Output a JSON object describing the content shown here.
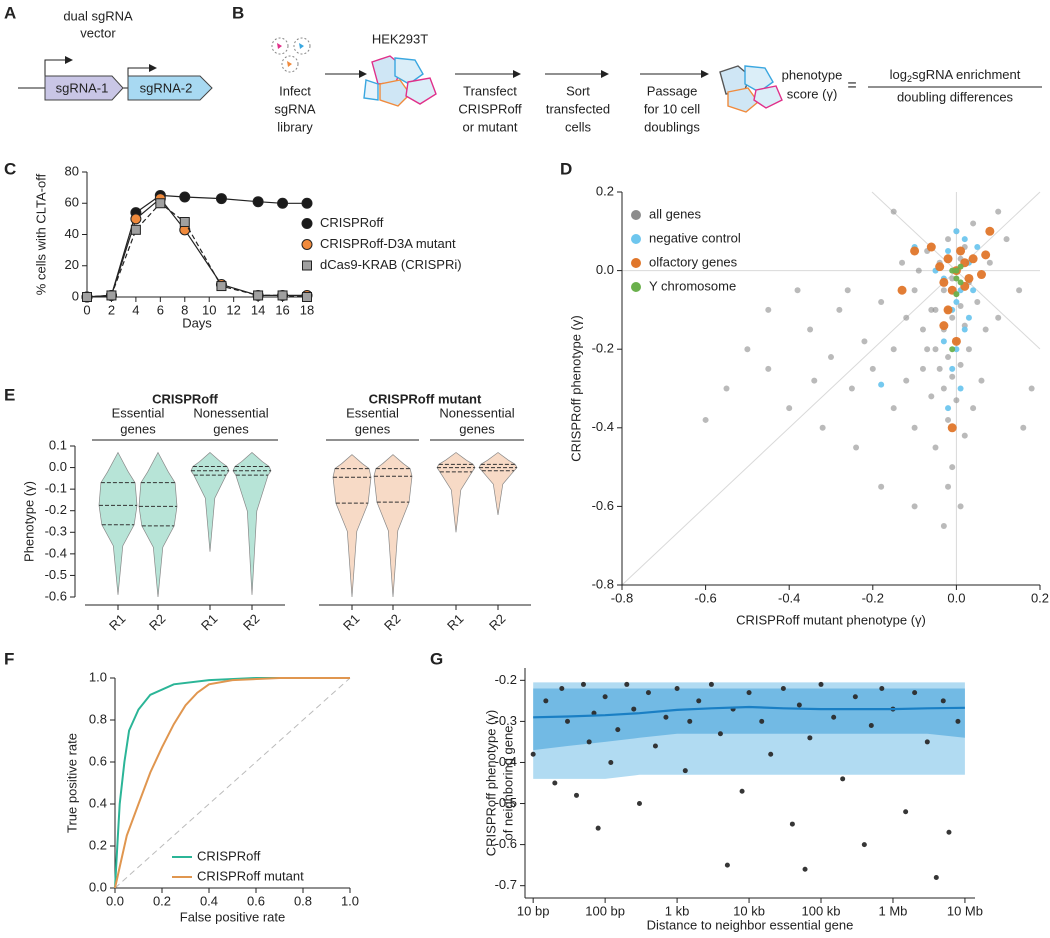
{
  "panel_labels": {
    "a": "A",
    "b": "B",
    "c": "C",
    "d": "D",
    "e": "E",
    "f": "F",
    "g": "G"
  },
  "diagram_a": {
    "title": [
      "dual sgRNA",
      "vector"
    ],
    "elements": [
      "sgRNA-1",
      "sgRNA-2"
    ]
  },
  "diagram_b": {
    "cell_line": "HEK293T",
    "steps": [
      [
        "Infect",
        "sgRNA",
        "library"
      ],
      [
        "Transfect",
        "CRISPRoff",
        "or mutant"
      ],
      [
        "Sort",
        "transfected",
        "cells"
      ],
      [
        "Passage",
        "for 10 cell",
        "doublings"
      ]
    ],
    "score_label": [
      "phenotype",
      "score (γ)"
    ],
    "equals": "=",
    "numerator": [
      "log",
      "2",
      "sgRNA enrichment"
    ],
    "denominator": "doubling differences"
  },
  "chart_data": [
    {
      "type": "line",
      "ylabel": "% cells with CLTA-off",
      "xlabel": "Days",
      "x": [
        0,
        2,
        4,
        6,
        8,
        11,
        14,
        16,
        18
      ],
      "xlim": [
        0,
        18
      ],
      "xticks": [
        0,
        2,
        4,
        6,
        8,
        10,
        12,
        14,
        16,
        18
      ],
      "ylim": [
        0,
        80
      ],
      "yticks": [
        0,
        20,
        40,
        60,
        80
      ],
      "legend": "right",
      "series": [
        {
          "name": "CRISPRoff",
          "color": "#1a1a1a",
          "marker": "circle",
          "dash": false,
          "values": [
            0,
            1,
            54,
            65,
            64,
            63,
            61,
            60,
            60
          ]
        },
        {
          "name": "CRISPRoff-D3A mutant",
          "color": "#f08a3c",
          "marker": "circle",
          "dash": false,
          "values": [
            0,
            1,
            50,
            63,
            43,
            8,
            1,
            1,
            1
          ]
        },
        {
          "name": "dCas9-KRAB (CRISPRi)",
          "color": "#a0a0a0",
          "marker": "square",
          "dash": true,
          "values": [
            0,
            1,
            43,
            60,
            48,
            7,
            1,
            1,
            0
          ]
        }
      ]
    },
    {
      "type": "scatter",
      "xlabel": "CRISPRoff mutant phenotype (γ)",
      "ylabel": "CRISPRoff phenotype (γ)",
      "xlim": [
        -0.8,
        0.2
      ],
      "ylim": [
        -0.8,
        0.2
      ],
      "xticks": [
        -0.8,
        -0.6,
        -0.4,
        -0.2,
        {
          "value": 0,
          "label": "0.0"
        },
        0.2
      ],
      "yticks": [
        -0.8,
        -0.6,
        -0.4,
        -0.2,
        {
          "value": 0,
          "label": "0.0"
        },
        0.2
      ],
      "legend": "upper left",
      "series": [
        {
          "name": "all genes",
          "color": "#8c8c8c",
          "x": [
            -0.35,
            -0.3,
            -0.28,
            -0.25,
            -0.22,
            -0.2,
            -0.18,
            -0.15,
            -0.15,
            -0.12,
            -0.12,
            -0.1,
            -0.1,
            -0.08,
            -0.08,
            -0.07,
            -0.06,
            -0.05,
            -0.05,
            -0.05,
            -0.04,
            -0.03,
            -0.03,
            -0.03,
            -0.02,
            -0.02,
            -0.02,
            -0.02,
            -0.01,
            -0.01,
            -0.01,
            -0.01,
            0,
            0,
            0,
            0,
            0.01,
            0.01,
            0.01,
            0.02,
            0.02,
            0.02,
            0.03,
            0.03,
            0.04,
            0.05,
            0.06,
            0.08,
            0.1,
            0.12,
            0.15,
            0.18,
            -0.45,
            -0.4,
            -0.5,
            -0.38,
            -0.32,
            -0.24,
            -0.18,
            -0.1,
            -0.55,
            -0.6,
            -0.07,
            -0.04,
            -0.06,
            -0.09,
            -0.13,
            0.04,
            0.07,
            -0.02,
            -0.03,
            0.01,
            0.16,
            0.1,
            -0.15,
            -0.26,
            -0.45,
            -0.34
          ],
          "values": [
            -0.15,
            -0.22,
            -0.1,
            -0.3,
            -0.18,
            -0.25,
            -0.08,
            -0.35,
            -0.2,
            -0.12,
            -0.28,
            -0.05,
            -0.4,
            -0.15,
            -0.25,
            0.05,
            -0.32,
            -0.1,
            -0.2,
            -0.45,
            0.02,
            -0.05,
            -0.15,
            -0.3,
            0.08,
            -0.1,
            -0.22,
            -0.38,
            -0.02,
            -0.12,
            -0.27,
            -0.5,
            0.1,
            -0.06,
            -0.18,
            -0.33,
            0.03,
            -0.09,
            -0.24,
            0.06,
            -0.14,
            -0.42,
            -0.03,
            -0.2,
            0.12,
            -0.08,
            -0.28,
            0.02,
            -0.12,
            0.08,
            -0.05,
            -0.3,
            -0.25,
            -0.35,
            -0.2,
            -0.05,
            -0.4,
            -0.45,
            -0.55,
            -0.6,
            -0.3,
            -0.38,
            -0.2,
            -0.25,
            -0.1,
            0,
            0.02,
            -0.35,
            -0.15,
            -0.55,
            -0.65,
            -0.6,
            -0.4,
            0.15,
            0.15,
            -0.05,
            -0.1,
            -0.28
          ]
        },
        {
          "name": "negative control",
          "color": "#6ec6ee",
          "x": [
            -0.02,
            0,
            0.02,
            0.03,
            -0.03,
            0.01,
            -0.01,
            0.02,
            0,
            -0.01,
            0.01,
            -0.03,
            0.04,
            -0.05,
            0.05,
            -0.02,
            -0.18,
            -0.1,
            0,
            0.03
          ],
          "values": [
            0.05,
            0.1,
            0.08,
            0.02,
            -0.02,
            -0.05,
            -0.1,
            -0.15,
            -0.2,
            -0.25,
            -0.3,
            -0.18,
            -0.05,
            0,
            0.06,
            -0.35,
            -0.29,
            0.06,
            -0.08,
            -0.12
          ]
        },
        {
          "name": "olfactory genes",
          "color": "#e0762a",
          "x": [
            0,
            0.02,
            -0.02,
            0.03,
            -0.03,
            0.01,
            -0.01,
            0.04,
            -0.04,
            0.02,
            -0.06,
            0.06,
            -0.1,
            -0.13,
            0.08,
            -0.02,
            0,
            -0.01,
            -0.03,
            0.07
          ],
          "values": [
            0,
            0.02,
            0.03,
            -0.02,
            -0.03,
            0.05,
            -0.05,
            0.03,
            0.01,
            -0.04,
            0.06,
            -0.01,
            0.05,
            -0.05,
            0.1,
            -0.1,
            -0.18,
            -0.4,
            -0.14,
            0.04
          ]
        },
        {
          "name": "Y chromosome",
          "color": "#6ab04c",
          "x": [
            0,
            0.01,
            -0.01,
            0,
            0.01,
            -0.01,
            0
          ],
          "values": [
            0,
            0.01,
            0,
            -0.02,
            -0.03,
            -0.2,
            -0.06
          ]
        }
      ]
    },
    {
      "type": "violin",
      "ylabel": "Phenotype (γ)",
      "ylim": [
        -0.6,
        0.1
      ],
      "yticks": [
        -0.6,
        -0.5,
        -0.4,
        -0.3,
        -0.2,
        -0.1,
        {
          "value": 0,
          "label": "0.0"
        },
        0.1
      ],
      "groups": [
        {
          "title": "CRISPRoff",
          "color": "#b7e4d7",
          "subgroups": [
            {
              "title": [
                "Essential",
                "genes"
              ],
              "violins": [
                {
                  "label": "R1",
                  "min": -0.59,
                  "q1": -0.265,
                  "median": -0.175,
                  "q3": -0.07,
                  "max": 0.07
                },
                {
                  "label": "R2",
                  "min": -0.6,
                  "q1": -0.27,
                  "median": -0.18,
                  "q3": -0.07,
                  "max": 0.07
                }
              ]
            },
            {
              "title": [
                "Nonessential",
                "genes"
              ],
              "violins": [
                {
                  "label": "R1",
                  "min": -0.39,
                  "q1": -0.035,
                  "median": -0.015,
                  "q3": 0.005,
                  "max": 0.07
                },
                {
                  "label": "R2",
                  "min": -0.59,
                  "q1": -0.035,
                  "median": -0.015,
                  "q3": 0.005,
                  "max": 0.07
                }
              ]
            }
          ]
        },
        {
          "title": "CRISPRoff mutant",
          "color": "#f7dac6",
          "subgroups": [
            {
              "title": [
                "Essential",
                "genes"
              ],
              "violins": [
                {
                  "label": "R1",
                  "min": -0.6,
                  "q1": -0.165,
                  "median": -0.045,
                  "q3": -0.005,
                  "max": 0.06
                },
                {
                  "label": "R2",
                  "min": -0.6,
                  "q1": -0.16,
                  "median": -0.04,
                  "q3": -0.005,
                  "max": 0.06
                }
              ]
            },
            {
              "title": [
                "Nonessential",
                "genes"
              ],
              "violins": [
                {
                  "label": "R1",
                  "min": -0.3,
                  "q1": -0.02,
                  "median": 0,
                  "q3": 0.015,
                  "max": 0.07
                },
                {
                  "label": "R2",
                  "min": -0.22,
                  "q1": -0.015,
                  "median": 0,
                  "q3": 0.015,
                  "max": 0.07
                }
              ]
            }
          ]
        }
      ]
    },
    {
      "type": "line",
      "xlabel": "False positive rate",
      "ylabel": "True positive rate",
      "xlim": [
        0,
        1
      ],
      "ylim": [
        0,
        1
      ],
      "xticks": [
        {
          "value": 0,
          "label": "0.0"
        },
        0.2,
        0.4,
        0.6,
        0.8,
        {
          "value": 1,
          "label": "1.0"
        }
      ],
      "yticks": [
        {
          "value": 0,
          "label": "0.0"
        },
        0.2,
        0.4,
        0.6,
        0.8,
        {
          "value": 1,
          "label": "1.0"
        }
      ],
      "legend": "lower right",
      "series": [
        {
          "name": "CRISPRoff",
          "color": "#2bb597",
          "x": [
            0,
            0.01,
            0.02,
            0.04,
            0.06,
            0.1,
            0.15,
            0.25,
            0.4,
            0.6,
            1
          ],
          "values": [
            0,
            0.2,
            0.4,
            0.6,
            0.75,
            0.85,
            0.92,
            0.97,
            0.99,
            1,
            1
          ]
        },
        {
          "name": "CRISPRoff mutant",
          "color": "#e0964f",
          "x": [
            0,
            0.02,
            0.05,
            0.1,
            0.15,
            0.2,
            0.25,
            0.3,
            0.35,
            0.4,
            0.5,
            0.7,
            1
          ],
          "values": [
            0,
            0.1,
            0.25,
            0.4,
            0.55,
            0.67,
            0.78,
            0.87,
            0.93,
            0.97,
            0.99,
            1,
            1
          ]
        }
      ]
    },
    {
      "type": "scatter",
      "xscale": "log",
      "xlabel": "Distance to neighbor essential gene",
      "ylabel": [
        "CRISPRoff phenotype (γ)",
        "of neighboring gene"
      ],
      "xlim": [
        7.7,
        13800000
      ],
      "ylim": [
        -0.73,
        -0.17
      ],
      "xticks": [
        {
          "value": 10,
          "label": "10 bp"
        },
        {
          "value": 100,
          "label": "100 bp"
        },
        {
          "value": 1000,
          "label": "1 kb"
        },
        {
          "value": 10000,
          "label": "10 kb"
        },
        {
          "value": 100000,
          "label": "100 kb"
        },
        {
          "value": 1000000,
          "label": "1 Mb"
        },
        {
          "value": 10000000,
          "label": "10 Mb"
        }
      ],
      "yticks": [
        -0.7,
        -0.6,
        -0.5,
        -0.4,
        -0.3,
        -0.2
      ],
      "bands": [
        {
          "color": "#a9d7f1",
          "x": [
            10,
            30,
            100,
            300,
            1000,
            3000,
            10000,
            30000,
            100000,
            300000,
            1000000,
            3000000,
            10000000
          ],
          "upper": [
            -0.205,
            -0.205,
            -0.205,
            -0.205,
            -0.205,
            -0.205,
            -0.205,
            -0.205,
            -0.205,
            -0.205,
            -0.205,
            -0.205,
            -0.205
          ],
          "lower": [
            -0.44,
            -0.44,
            -0.44,
            -0.43,
            -0.43,
            -0.43,
            -0.43,
            -0.43,
            -0.43,
            -0.43,
            -0.43,
            -0.43,
            -0.43
          ]
        },
        {
          "color": "#6cb6e2",
          "x": [
            10,
            30,
            100,
            300,
            1000,
            3000,
            10000,
            30000,
            100000,
            300000,
            1000000,
            3000000,
            10000000
          ],
          "upper": [
            -0.22,
            -0.22,
            -0.22,
            -0.22,
            -0.22,
            -0.22,
            -0.22,
            -0.22,
            -0.22,
            -0.22,
            -0.22,
            -0.22,
            -0.22
          ],
          "lower": [
            -0.37,
            -0.36,
            -0.35,
            -0.34,
            -0.33,
            -0.33,
            -0.33,
            -0.33,
            -0.33,
            -0.33,
            -0.33,
            -0.33,
            -0.34
          ]
        }
      ],
      "trend": {
        "color": "#1a7fc4",
        "x": [
          10,
          30,
          100,
          300,
          1000,
          3000,
          10000,
          30000,
          100000,
          300000,
          1000000,
          3000000,
          10000000
        ],
        "values": [
          -0.29,
          -0.288,
          -0.285,
          -0.28,
          -0.272,
          -0.268,
          -0.265,
          -0.268,
          -0.27,
          -0.27,
          -0.27,
          -0.268,
          -0.267
        ]
      },
      "series": [
        {
          "color": "#2b2b2b",
          "x": [
            10,
            15,
            20,
            25,
            30,
            40,
            50,
            60,
            70,
            80,
            100,
            120,
            150,
            200,
            250,
            300,
            400,
            500,
            700,
            1000,
            1300,
            1500,
            2000,
            3000,
            4000,
            5000,
            6000,
            8000,
            10000,
            15000,
            20000,
            30000,
            40000,
            50000,
            60000,
            70000,
            100000,
            150000,
            200000,
            300000,
            400000,
            500000,
            700000,
            1000000,
            1500000,
            2000000,
            3000000,
            4000000,
            5000000,
            6000000,
            8000000
          ],
          "values": [
            -0.38,
            -0.25,
            -0.45,
            -0.22,
            -0.3,
            -0.48,
            -0.21,
            -0.35,
            -0.28,
            -0.56,
            -0.24,
            -0.4,
            -0.32,
            -0.21,
            -0.27,
            -0.5,
            -0.23,
            -0.36,
            -0.29,
            -0.22,
            -0.42,
            -0.3,
            -0.25,
            -0.21,
            -0.33,
            -0.65,
            -0.27,
            -0.47,
            -0.23,
            -0.3,
            -0.38,
            -0.22,
            -0.55,
            -0.26,
            -0.66,
            -0.34,
            -0.21,
            -0.29,
            -0.44,
            -0.24,
            -0.6,
            -0.31,
            -0.22,
            -0.27,
            -0.52,
            -0.23,
            -0.35,
            -0.68,
            -0.25,
            -0.57,
            -0.3
          ]
        }
      ]
    }
  ]
}
